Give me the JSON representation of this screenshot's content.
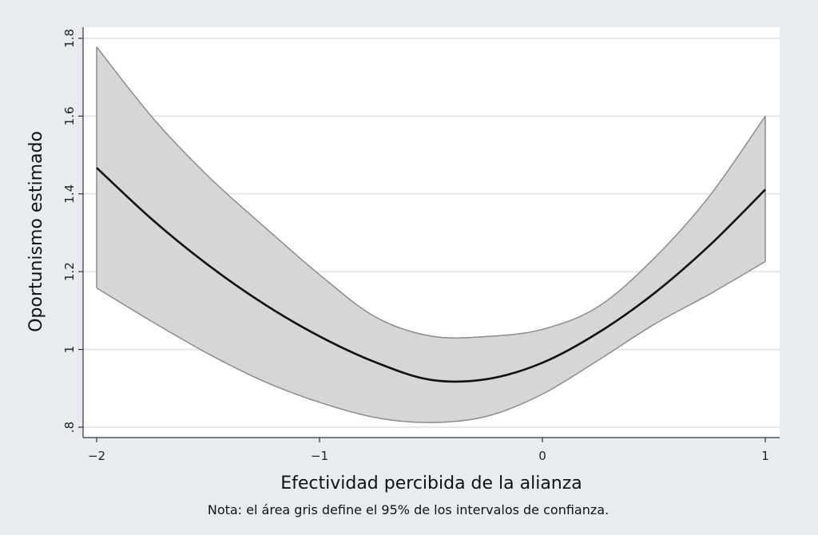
{
  "chart_data": {
    "type": "line",
    "xlabel": "Efectividad percibida de la alianza",
    "ylabel": "Oportunismo estimado",
    "note": "Nota: el área gris define el 95% de los intervalos de confianza.",
    "xlim": [
      -2,
      1
    ],
    "ylim": [
      0.8,
      1.8
    ],
    "x_ticks": [
      -2,
      -1,
      0,
      1
    ],
    "x_tick_labels": [
      "−2",
      "−1",
      "0",
      "1"
    ],
    "y_ticks": [
      0.8,
      1.0,
      1.2,
      1.4,
      1.6,
      1.8
    ],
    "y_tick_labels": [
      ".8",
      "1",
      "1.2",
      "1.4",
      "1.6",
      "1.8"
    ],
    "grid": true,
    "colors": {
      "background": "#e8ecf1",
      "plot_area": "#ffffff",
      "grid": "#e3e8ee",
      "band_fill": "#d6d6d8",
      "band_edge": "#8c8c8c",
      "line": "#111111"
    },
    "series": [
      {
        "x": [
          -2.0,
          -1.75,
          -1.5,
          -1.25,
          -1.0,
          -0.75,
          -0.5,
          -0.25,
          0.0,
          0.25,
          0.5,
          0.75,
          1.0
        ],
        "values": [
          1.467,
          1.3337,
          1.2172,
          1.1172,
          1.0337,
          0.9672,
          0.9218,
          0.9236,
          0.9657,
          1.0428,
          1.1436,
          1.2675,
          1.411
        ]
      },
      {
        "type": "area",
        "x": [
          -2.0,
          -1.75,
          -1.5,
          -1.25,
          -1.0,
          -0.75,
          -0.5,
          -0.25,
          0.0,
          0.25,
          0.5,
          0.75,
          1.0
        ],
        "lower": [
          1.158,
          1.071,
          0.989,
          0.918,
          0.864,
          0.825,
          0.812,
          0.828,
          0.885,
          0.972,
          1.064,
          1.142,
          1.226
        ],
        "upper": [
          1.778,
          1.5965,
          1.4455,
          1.3164,
          1.1923,
          1.0838,
          1.0343,
          1.0334,
          1.0517,
          1.1099,
          1.2336,
          1.3946,
          1.6
        ]
      }
    ]
  }
}
